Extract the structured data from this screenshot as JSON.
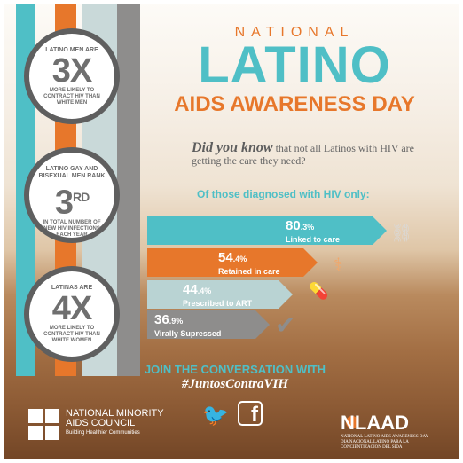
{
  "header": {
    "national": "NATIONAL",
    "latino": "LATINO",
    "aids": "AIDS AWARENESS DAY"
  },
  "stats": [
    {
      "top": "LATINO MEN ARE",
      "big": "3X",
      "bottom": "MORE LIKELY TO CONTRACT HIV THAN WHITE MEN"
    },
    {
      "top": "LATINO GAY AND BISEXUAL MEN RANK",
      "big": "3",
      "sup": "RD",
      "bottom": "IN TOTAL NUMBER OF NEW HIV INFECTIONS EACH YEAR"
    },
    {
      "top": "LATINAS ARE",
      "big": "4X",
      "bottom": "MORE LIKELY TO CONTRACT HIV THAN WHITE WOMEN"
    }
  ],
  "intro": {
    "lead": "Did you know",
    "rest": " that not all Latinos with HIV are getting the care they need?"
  },
  "diagnosed_label": "Of those diagnosed with HIV only:",
  "cascade": [
    {
      "whole": "80",
      "dec": ".3%",
      "label": "Linked to care",
      "value": 80.3,
      "color": "#4fbfc6",
      "icon": "chain-link-icon"
    },
    {
      "whole": "54",
      "dec": ".4%",
      "label": "Retained in care",
      "value": 54.4,
      "color": "#e7772b",
      "icon": "medical-caduceus-icon"
    },
    {
      "whole": "44",
      "dec": ".4%",
      "label": "Prescribed to ART",
      "value": 44.4,
      "color": "#b9d3d3",
      "icon": "pill-icon"
    },
    {
      "whole": "36",
      "dec": ".9%",
      "label": "Virally Supressed",
      "value": 36.9,
      "color": "#8e8d8c",
      "icon": "checkmark-icon"
    }
  ],
  "footer": {
    "join": "JOIN THE CONVERSATION WITH",
    "hashtag": "#JuntosContraVIH",
    "nmac_name_1": "NATIONAL MINORITY",
    "nmac_name_2": "AIDS COUNCIL",
    "nmac_tagline": "Building Healthier Communities",
    "twitter_icon": "twitter-icon",
    "facebook_icon": "facebook-icon",
    "facebook_glyph": "f",
    "nlaad_name": "NLAAD",
    "nlaad_sub_1": "NATIONAL LATINO AIDS AWARENESS DAY",
    "nlaad_sub_2": "DIA NACIONAL LATINO PARA LA CONCIENTIZACION DEL SIDA"
  }
}
